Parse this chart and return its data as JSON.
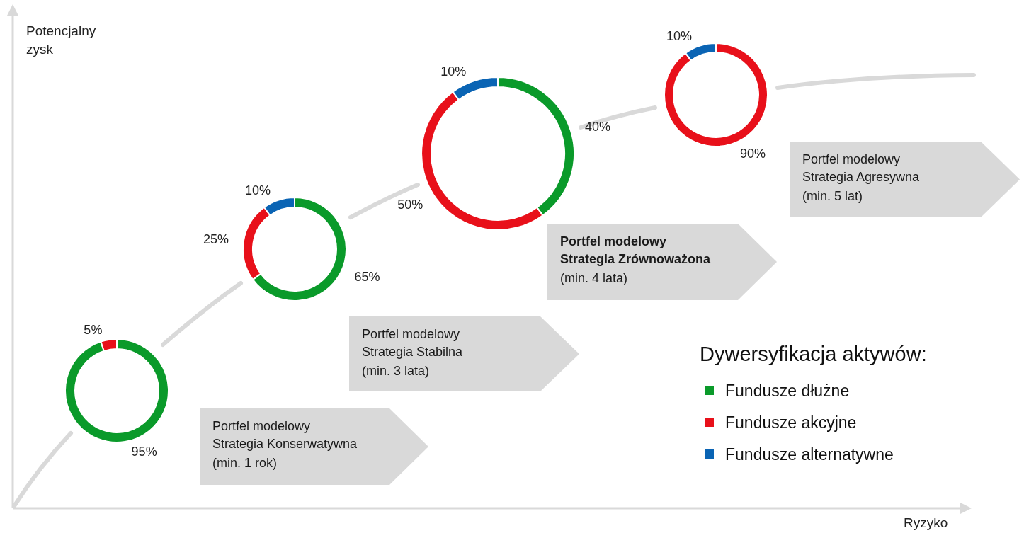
{
  "chart_data": [
    {
      "type": "other",
      "xlabel": "Ryzyko",
      "ylabel": "Potencjalny zysk"
    },
    {
      "type": "donut",
      "title": "Portfel modelowy\nStrategia Konserwatywna",
      "subtitle": "(min. 1 rok)",
      "categories": [
        null,
        null,
        null
      ],
      "values": [
        95,
        5,
        0
      ],
      "colors": [
        "#0a9a2a",
        "#e8101a",
        "#0a64b4"
      ],
      "value_labels": [
        "95%",
        "5%",
        null
      ]
    },
    {
      "type": "donut",
      "title": "Portfel modelowy\nStrategia Stabilna",
      "subtitle": "(min. 3 lata)",
      "categories": [
        null,
        null,
        null
      ],
      "values": [
        65,
        25,
        10
      ],
      "colors": [
        "#0a9a2a",
        "#e8101a",
        "#0a64b4"
      ],
      "value_labels": [
        "65%",
        "25%",
        "10%"
      ]
    },
    {
      "type": "donut",
      "title": "Portfel modelowy\nStrategia Zrównoważona",
      "subtitle": "(min. 4 lata)",
      "categories": [
        null,
        null,
        null
      ],
      "values": [
        40,
        50,
        10
      ],
      "colors": [
        "#0a9a2a",
        "#e8101a",
        "#0a64b4"
      ],
      "value_labels": [
        "40%",
        "50%",
        "10%"
      ]
    },
    {
      "type": "donut",
      "title": "Portfel modelowy\nStrategia Agresywna",
      "subtitle": "(min. 5 lat)",
      "categories": [
        "Fundusze dłużne",
        "Fundusze akcyjne",
        "Fundusze alternatywne"
      ],
      "values": [
        0,
        90,
        10
      ],
      "colors": [
        "#0a9a2a",
        "#e8101a",
        "#0a64b4"
      ],
      "value_labels": [
        null,
        "90%",
        "10%"
      ],
      "legend": "bottom right",
      "legend_title": "Dywersyfikacja aktywów:"
    }
  ]
}
